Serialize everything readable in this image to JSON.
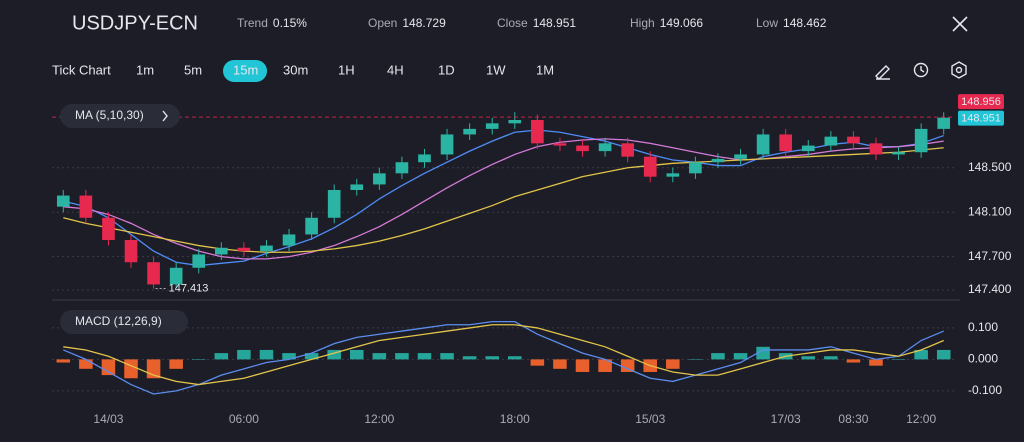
{
  "header": {
    "symbol": "USDJPY-ECN",
    "stats": [
      {
        "label": "Trend",
        "value": "0.15%"
      },
      {
        "label": "Open",
        "value": 148.729
      },
      {
        "label": "Close",
        "value": 148.951
      },
      {
        "label": "High",
        "value": 149.066
      },
      {
        "label": "Low",
        "value": 148.462
      }
    ]
  },
  "timeframes": {
    "items": [
      "Tick Chart",
      "1m",
      "5m",
      "15m",
      "30m",
      "1H",
      "4H",
      "1D",
      "1W",
      "1M"
    ],
    "active_index": 3
  },
  "indicators": {
    "ma_label": "MA (5,10,30)",
    "macd_label": "MACD (12,26,9)"
  },
  "chart_data": {
    "type": "candlestick",
    "categories": [
      null,
      null,
      "14/03",
      null,
      null,
      null,
      null,
      null,
      "06:00",
      null,
      null,
      null,
      null,
      null,
      "12:00",
      null,
      null,
      null,
      null,
      null,
      "18:00",
      null,
      null,
      null,
      null,
      null,
      "15/03",
      null,
      null,
      null,
      null,
      null,
      "17/03",
      null,
      null,
      "08:30",
      null,
      null,
      "12:00",
      null
    ],
    "candles": {
      "open": [
        148.15,
        148.25,
        148.05,
        147.85,
        147.65,
        147.45,
        147.6,
        147.72,
        147.78,
        147.75,
        147.8,
        147.9,
        148.05,
        148.3,
        148.35,
        148.45,
        148.55,
        148.62,
        148.8,
        148.85,
        148.9,
        148.93,
        148.72,
        148.7,
        148.65,
        148.72,
        148.6,
        148.42,
        148.45,
        148.55,
        148.58,
        148.62,
        148.8,
        148.65,
        148.7,
        148.78,
        148.72,
        148.62,
        148.64,
        148.85
      ],
      "high": [
        148.3,
        148.3,
        148.1,
        147.9,
        147.7,
        147.65,
        147.77,
        147.83,
        147.83,
        147.85,
        147.95,
        148.1,
        148.35,
        148.4,
        148.5,
        148.6,
        148.67,
        148.85,
        148.9,
        148.95,
        149.0,
        148.98,
        148.77,
        148.75,
        148.77,
        148.77,
        148.65,
        148.5,
        148.6,
        148.63,
        148.67,
        148.85,
        148.85,
        148.75,
        148.83,
        148.83,
        148.77,
        148.69,
        148.9,
        149.0
      ],
      "low": [
        148.1,
        148.0,
        147.8,
        147.6,
        147.413,
        147.42,
        147.55,
        147.67,
        147.7,
        147.7,
        147.75,
        147.85,
        148.0,
        148.25,
        148.3,
        148.4,
        148.5,
        148.57,
        148.75,
        148.8,
        148.85,
        148.67,
        148.65,
        148.6,
        148.6,
        148.55,
        148.37,
        148.37,
        148.4,
        148.5,
        148.53,
        148.57,
        148.6,
        148.6,
        148.65,
        148.67,
        148.57,
        148.57,
        148.59,
        148.8
      ],
      "close": [
        148.25,
        148.05,
        147.85,
        147.65,
        147.45,
        147.6,
        147.72,
        147.78,
        147.75,
        147.8,
        147.9,
        148.05,
        148.3,
        148.35,
        148.45,
        148.55,
        148.62,
        148.8,
        148.85,
        148.9,
        148.93,
        148.72,
        148.7,
        148.65,
        148.72,
        148.6,
        148.42,
        148.45,
        148.55,
        148.58,
        148.62,
        148.8,
        148.65,
        148.7,
        148.78,
        148.72,
        148.62,
        148.64,
        148.85,
        148.951
      ],
      "up_color": "#2bb3a3",
      "down_color": "#e8294f"
    },
    "ma": [
      {
        "color": "#4f8df7",
        "values": [
          148.2,
          148.15,
          148.05,
          147.9,
          147.75,
          147.65,
          147.62,
          147.64,
          147.66,
          147.73,
          147.79,
          147.86,
          147.96,
          148.08,
          148.22,
          148.34,
          148.45,
          148.55,
          148.65,
          148.74,
          148.82,
          148.84,
          148.82,
          148.78,
          148.74,
          148.68,
          148.62,
          148.57,
          148.55,
          148.52,
          148.52,
          148.6,
          148.64,
          148.67,
          148.71,
          148.73,
          148.69,
          148.69,
          148.72,
          148.79
        ]
      },
      {
        "color": "#d57ad8",
        "values": [
          148.15,
          148.13,
          148.08,
          148.0,
          147.9,
          147.82,
          147.75,
          147.7,
          147.68,
          147.68,
          147.7,
          147.74,
          147.8,
          147.88,
          147.97,
          148.08,
          148.2,
          148.32,
          148.43,
          148.53,
          148.62,
          148.69,
          148.73,
          148.75,
          148.76,
          148.75,
          148.72,
          148.68,
          148.64,
          148.6,
          148.57,
          148.58,
          148.6,
          148.62,
          148.65,
          148.67,
          148.68,
          148.69,
          148.71,
          148.74
        ]
      },
      {
        "color": "#e2c44a",
        "values": [
          148.05,
          148.0,
          147.96,
          147.92,
          147.88,
          147.84,
          147.8,
          147.77,
          147.75,
          147.74,
          147.74,
          147.75,
          147.77,
          147.8,
          147.84,
          147.89,
          147.95,
          148.02,
          148.09,
          148.16,
          148.24,
          148.3,
          148.36,
          148.42,
          148.46,
          148.5,
          148.52,
          148.54,
          148.55,
          148.56,
          148.57,
          148.58,
          148.59,
          148.6,
          148.61,
          148.62,
          148.63,
          148.64,
          148.66,
          148.68
        ]
      }
    ],
    "ylim": [
      147.31,
      149.11
    ],
    "yticks": [
      {
        "value": 148.5,
        "label": "148.500"
      },
      {
        "value": 148.1,
        "label": "148.100"
      },
      {
        "value": 147.7,
        "label": "147.700"
      },
      {
        "value": 147.4,
        "label": "147.400"
      }
    ],
    "price_tags": [
      {
        "value": 148.956,
        "color": "#e8294f"
      },
      {
        "value": 148.951,
        "color": "#21c5d6"
      }
    ],
    "low_marker": 147.413,
    "macd": {
      "histogram": [
        -0.01,
        -0.03,
        -0.05,
        -0.06,
        -0.06,
        -0.03,
        0.0,
        0.02,
        0.03,
        0.03,
        0.02,
        0.02,
        0.03,
        0.03,
        0.02,
        0.02,
        0.02,
        0.02,
        0.01,
        0.01,
        0.01,
        -0.02,
        -0.03,
        -0.04,
        -0.04,
        -0.04,
        -0.04,
        -0.03,
        0.0,
        0.02,
        0.02,
        0.04,
        0.02,
        0.01,
        0.01,
        -0.01,
        -0.02,
        0.0,
        0.03,
        0.03
      ],
      "hist_up_color": "#26a69a",
      "hist_down_color": "#e8602c",
      "lines": [
        {
          "color": "#5b8def",
          "values": [
            0.03,
            0.0,
            -0.04,
            -0.08,
            -0.11,
            -0.1,
            -0.08,
            -0.05,
            -0.03,
            -0.01,
            0.0,
            0.02,
            0.05,
            0.07,
            0.08,
            0.09,
            0.1,
            0.11,
            0.11,
            0.12,
            0.12,
            0.08,
            0.05,
            0.02,
            0.0,
            -0.03,
            -0.06,
            -0.07,
            -0.05,
            -0.03,
            -0.01,
            0.03,
            0.03,
            0.03,
            0.04,
            0.02,
            0.0,
            0.01,
            0.06,
            0.09
          ]
        },
        {
          "color": "#e2c44a",
          "values": [
            0.04,
            0.03,
            0.01,
            -0.02,
            -0.05,
            -0.07,
            -0.08,
            -0.07,
            -0.06,
            -0.04,
            -0.02,
            0.0,
            0.02,
            0.04,
            0.06,
            0.07,
            0.08,
            0.09,
            0.1,
            0.11,
            0.11,
            0.1,
            0.08,
            0.06,
            0.04,
            0.01,
            -0.02,
            -0.04,
            -0.05,
            -0.05,
            -0.03,
            -0.01,
            0.01,
            0.02,
            0.03,
            0.03,
            0.02,
            0.01,
            0.03,
            0.06
          ]
        }
      ],
      "ylim": [
        -0.145,
        0.157
      ],
      "yticks": [
        {
          "value": 0.1,
          "label": "0.100"
        },
        {
          "value": 0,
          "label": "0.000"
        },
        {
          "value": -0.1,
          "label": "-0.100"
        }
      ]
    },
    "grid": true
  }
}
